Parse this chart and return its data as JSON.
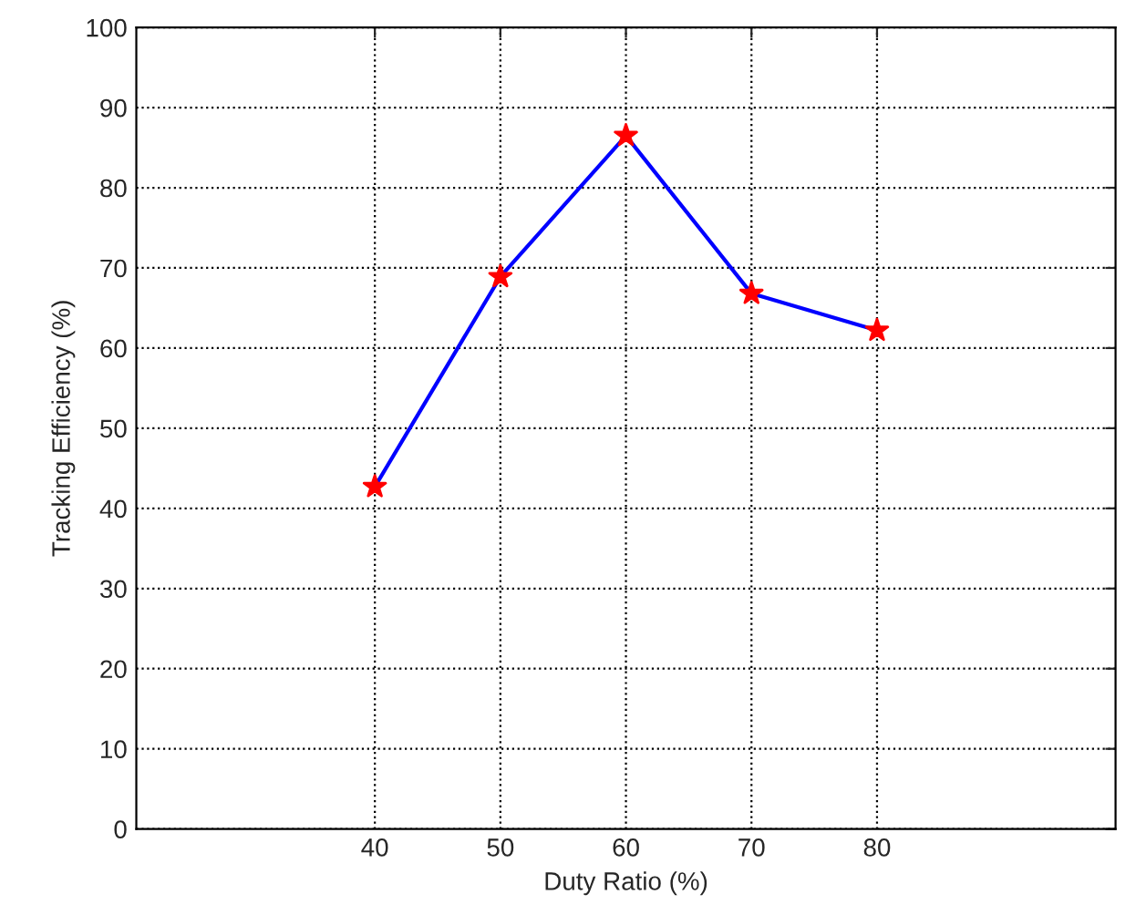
{
  "chart_data": {
    "type": "line",
    "xlabel": "Duty Ratio (%)",
    "ylabel": "Tracking Efficiency (%)",
    "x": [
      40,
      50,
      60,
      70,
      80
    ],
    "series": [
      {
        "color": "#0000ff",
        "values": [
          42.7,
          68.9,
          86.5,
          66.8,
          62.2
        ],
        "colors": [
          "#ff0000",
          "#ff0000",
          "#ff0000",
          "#ff0000",
          "#ff0000"
        ]
      }
    ],
    "xlim": [
      21,
      99
    ],
    "xticks": [
      40,
      50,
      60,
      70,
      80
    ],
    "ylim": [
      0,
      100
    ],
    "yticks": [
      0,
      10,
      20,
      30,
      40,
      50,
      60,
      70,
      80,
      90,
      100
    ],
    "grid": true,
    "marker": "star",
    "line_style": "solid",
    "legend": false
  }
}
